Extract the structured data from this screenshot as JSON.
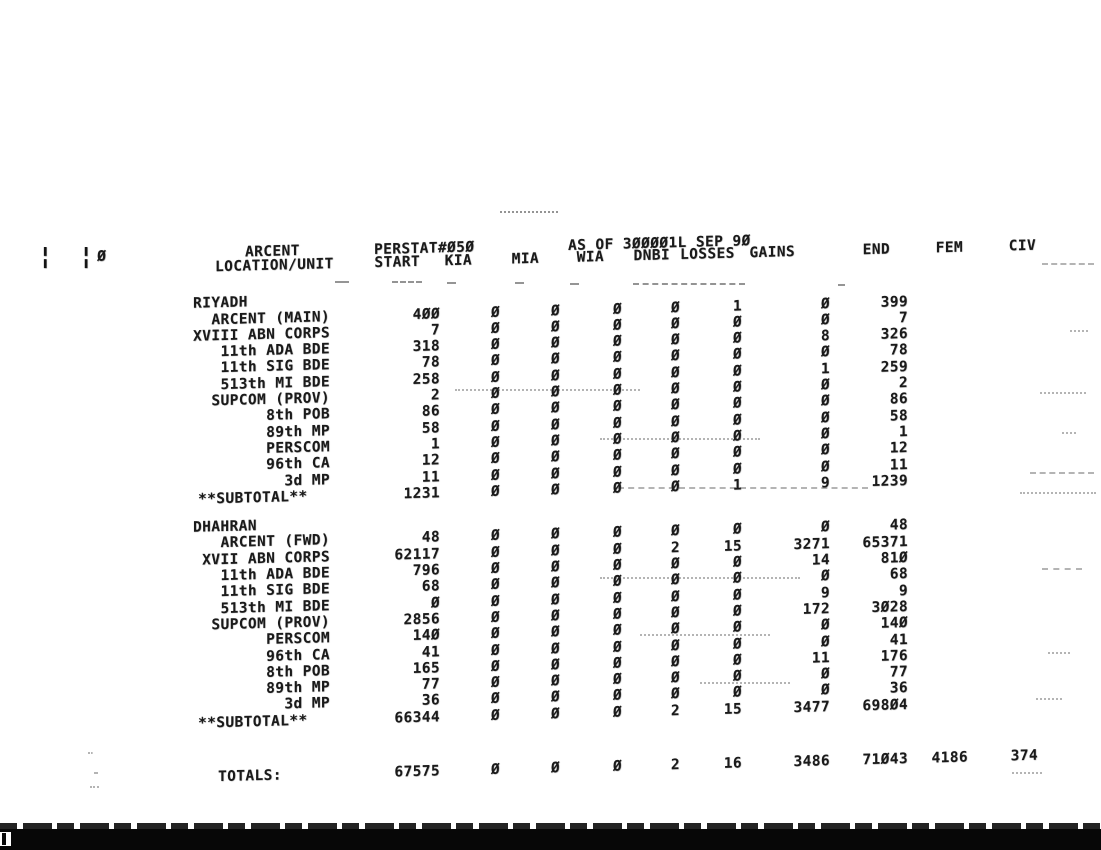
{
  "report": {
    "margin": {
      "bars": "¦ ¦",
      "zero": "0"
    },
    "title": {
      "org": "ARCENT",
      "report_id": "PERSTAT#050",
      "as_of": "AS OF 300001L SEP 90"
    },
    "headers": {
      "unit": "LOCATION/UNIT",
      "start": "START",
      "kia": "KIA",
      "mia": "MIA",
      "wia": "WIA",
      "dnbi": "DNBI",
      "losses": "LOSSES",
      "gains": "GAINS",
      "end": "END",
      "fem": "FEM",
      "civ": "CIV"
    },
    "sections": [
      {
        "name": "RIYADH",
        "rows": [
          [
            "ARCENT (MAIN)",
            "400",
            "0",
            "0",
            "0",
            "0",
            "1",
            "0",
            "399"
          ],
          [
            "XVIII ABN CORPS",
            "7",
            "0",
            "0",
            "0",
            "0",
            "0",
            "0",
            "7"
          ],
          [
            "11th ADA BDE",
            "318",
            "0",
            "0",
            "0",
            "0",
            "0",
            "8",
            "326"
          ],
          [
            "11th SIG BDE",
            "78",
            "0",
            "0",
            "0",
            "0",
            "0",
            "0",
            "78"
          ],
          [
            "513th MI BDE",
            "258",
            "0",
            "0",
            "0",
            "0",
            "0",
            "1",
            "259"
          ],
          [
            "SUPCOM (PROV)",
            "2",
            "0",
            "0",
            "0",
            "0",
            "0",
            "0",
            "2"
          ],
          [
            "8th POB",
            "86",
            "0",
            "0",
            "0",
            "0",
            "0",
            "0",
            "86"
          ],
          [
            "89th MP",
            "58",
            "0",
            "0",
            "0",
            "0",
            "0",
            "0",
            "58"
          ],
          [
            "PERSCOM",
            "1",
            "0",
            "0",
            "0",
            "0",
            "0",
            "0",
            "1"
          ],
          [
            "96th CA",
            "12",
            "0",
            "0",
            "0",
            "0",
            "0",
            "0",
            "12"
          ],
          [
            "3d MP",
            "11",
            "0",
            "0",
            "0",
            "0",
            "0",
            "0",
            "11"
          ]
        ],
        "subtotal": [
          "**SUBTOTAL**",
          "1231",
          "0",
          "0",
          "0",
          "0",
          "1",
          "9",
          "1239"
        ]
      },
      {
        "name": "DHAHRAN",
        "rows": [
          [
            "ARCENT (FWD)",
            "48",
            "0",
            "0",
            "0",
            "0",
            "0",
            "0",
            "48"
          ],
          [
            "XVII ABN CORPS",
            "62117",
            "0",
            "0",
            "0",
            "2",
            "15",
            "3271",
            "65371"
          ],
          [
            "11th ADA BDE",
            "796",
            "0",
            "0",
            "0",
            "0",
            "0",
            "14",
            "810"
          ],
          [
            "11th SIG BDE",
            "68",
            "0",
            "0",
            "0",
            "0",
            "0",
            "0",
            "68"
          ],
          [
            "513th MI BDE",
            "0",
            "0",
            "0",
            "0",
            "0",
            "0",
            "9",
            "9"
          ],
          [
            "SUPCOM (PROV)",
            "2856",
            "0",
            "0",
            "0",
            "0",
            "0",
            "172",
            "3028"
          ],
          [
            "PERSCOM",
            "140",
            "0",
            "0",
            "0",
            "0",
            "0",
            "0",
            "140"
          ],
          [
            "96th CA",
            "41",
            "0",
            "0",
            "0",
            "0",
            "0",
            "0",
            "41"
          ],
          [
            "8th POB",
            "165",
            "0",
            "0",
            "0",
            "0",
            "0",
            "11",
            "176"
          ],
          [
            "89th MP",
            "77",
            "0",
            "0",
            "0",
            "0",
            "0",
            "0",
            "77"
          ],
          [
            "3d MP",
            "36",
            "0",
            "0",
            "0",
            "0",
            "0",
            "0",
            "36"
          ]
        ],
        "subtotal": [
          "**SUBTOTAL**",
          "66344",
          "0",
          "0",
          "0",
          "2",
          "15",
          "3477",
          "69804"
        ]
      }
    ],
    "totals": [
      "TOTALS:",
      "67575",
      "0",
      "0",
      "0",
      "2",
      "16",
      "3486",
      "71043",
      "4186",
      "374"
    ]
  }
}
